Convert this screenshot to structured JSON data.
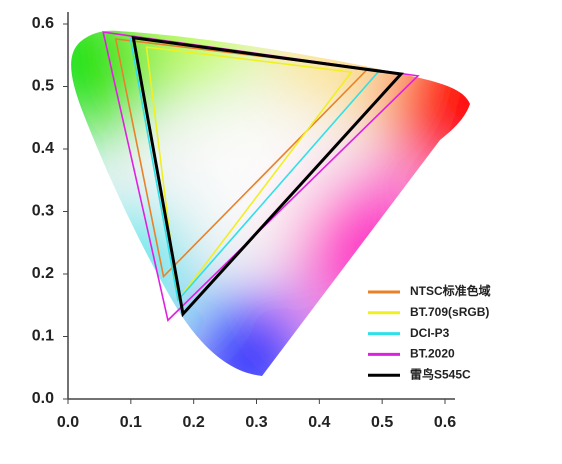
{
  "chart_data": {
    "type": "polygon",
    "xlim": [
      0,
      0.6
    ],
    "ylim": [
      0,
      0.6
    ],
    "xticks": [
      {
        "value": 0,
        "label": "0.0"
      },
      0.1,
      0.2,
      0.3,
      0.4,
      0.5,
      0.6
    ],
    "yticks": [
      {
        "value": 0,
        "label": "0.0"
      },
      0.1,
      0.2,
      0.3,
      0.4,
      0.5,
      0.6
    ],
    "series": [
      {
        "name": "NTSC标准色域",
        "color": "#e8822a",
        "x": [
          0.477,
          0.076,
          0.152
        ],
        "y": [
          0.528,
          0.576,
          0.196
        ]
      },
      {
        "name": "BT.709(sRGB)",
        "color": "#f0f020",
        "x": [
          0.451,
          0.125,
          0.175
        ],
        "y": [
          0.523,
          0.563,
          0.158
        ]
      },
      {
        "name": "DCI-P3",
        "color": "#30e0e8",
        "x": [
          0.496,
          0.099,
          0.175
        ],
        "y": [
          0.526,
          0.578,
          0.158
        ]
      },
      {
        "name": "BT.2020",
        "color": "#e020e0",
        "x": [
          0.557,
          0.056,
          0.159
        ],
        "y": [
          0.517,
          0.587,
          0.126
        ]
      },
      {
        "name": "雷鸟S545C",
        "color": "#000000",
        "x": [
          0.53,
          0.104,
          0.183
        ],
        "y": [
          0.52,
          0.578,
          0.136
        ]
      }
    ]
  }
}
